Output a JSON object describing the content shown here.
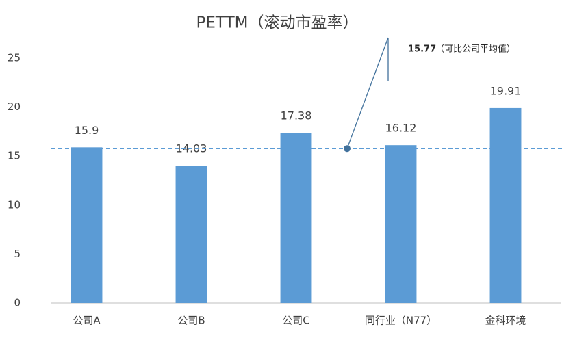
{
  "chart_data": {
    "type": "bar",
    "title": "PETTM（滚动市盈率）",
    "categories": [
      "公司A",
      "公司B",
      "公司C",
      "同行业（N77）",
      "金科环境"
    ],
    "values": [
      15.9,
      14.03,
      17.38,
      16.12,
      19.91
    ],
    "color": "#5b9bd5",
    "ylim": [
      0,
      27
    ],
    "yticks": [
      0,
      5,
      10,
      15,
      20,
      25
    ],
    "grid": false,
    "reference_line": {
      "value": 15.77,
      "label": "15.77",
      "text": "（可比公司平均值）",
      "color": "#5b9bd5"
    }
  }
}
